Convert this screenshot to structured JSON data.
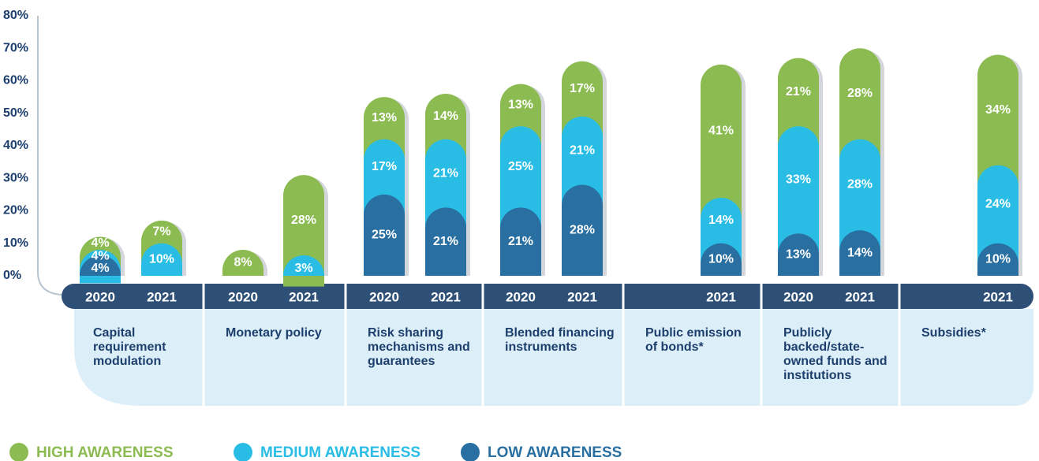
{
  "chart_data": {
    "type": "bar",
    "stacked": true,
    "groups": [
      {
        "label": "Capital requirement modulation",
        "categories": [
          "2020",
          "2021"
        ]
      },
      {
        "label": "Monetary policy",
        "categories": [
          "2020",
          "2021"
        ]
      },
      {
        "label": "Risk sharing mechanisms and guarantees",
        "categories": [
          "2020",
          "2021"
        ]
      },
      {
        "label": "Blended financing instruments",
        "categories": [
          "2020",
          "2021"
        ]
      },
      {
        "label": "Public emission of bonds*",
        "categories": [
          "2021"
        ]
      },
      {
        "label": "Publicly backed/state-owned funds and institutions",
        "categories": [
          "2020",
          "2021"
        ]
      },
      {
        "label": "Subsidies*",
        "categories": [
          "2021"
        ]
      }
    ],
    "series": [
      {
        "name": "HIGH AWARENESS",
        "color": "#8cbb52",
        "values": [
          4,
          7,
          8,
          28,
          13,
          14,
          13,
          17,
          41,
          21,
          28,
          34
        ],
        "value_labels": [
          "4%",
          "7%",
          "8%",
          "28%",
          "13%",
          "14%",
          "13%",
          "17%",
          "41%",
          "21%",
          "28%",
          "34%"
        ]
      },
      {
        "name": "MEDIUM AWARENESS",
        "color": "#29bde6",
        "values": [
          4,
          10,
          null,
          3,
          17,
          21,
          25,
          21,
          14,
          33,
          28,
          24
        ],
        "value_labels": [
          "4%",
          "10%",
          null,
          "3%",
          "17%",
          "21%",
          "25%",
          "21%",
          "14%",
          "33%",
          "28%",
          "24%"
        ]
      },
      {
        "name": "LOW AWARENESS",
        "color": "#2a6fa1",
        "values": [
          4,
          null,
          null,
          null,
          25,
          21,
          21,
          28,
          10,
          13,
          14,
          10
        ],
        "value_labels": [
          "4%",
          null,
          null,
          null,
          "25%",
          "21%",
          "21%",
          "28%",
          "10%",
          "13%",
          "14%",
          "10%"
        ]
      }
    ],
    "ylim": [
      0,
      80
    ],
    "yticks": [
      {
        "value": 0,
        "label": "0%"
      },
      {
        "value": 10,
        "label": "10%"
      },
      {
        "value": 20,
        "label": "20%"
      },
      {
        "value": 30,
        "label": "30%"
      },
      {
        "value": 40,
        "label": "40%"
      },
      {
        "value": 50,
        "label": "50%"
      },
      {
        "value": 60,
        "label": "60%"
      },
      {
        "value": 70,
        "label": "70%"
      },
      {
        "value": 80,
        "label": "80%"
      }
    ],
    "legend": "bottom-left"
  }
}
